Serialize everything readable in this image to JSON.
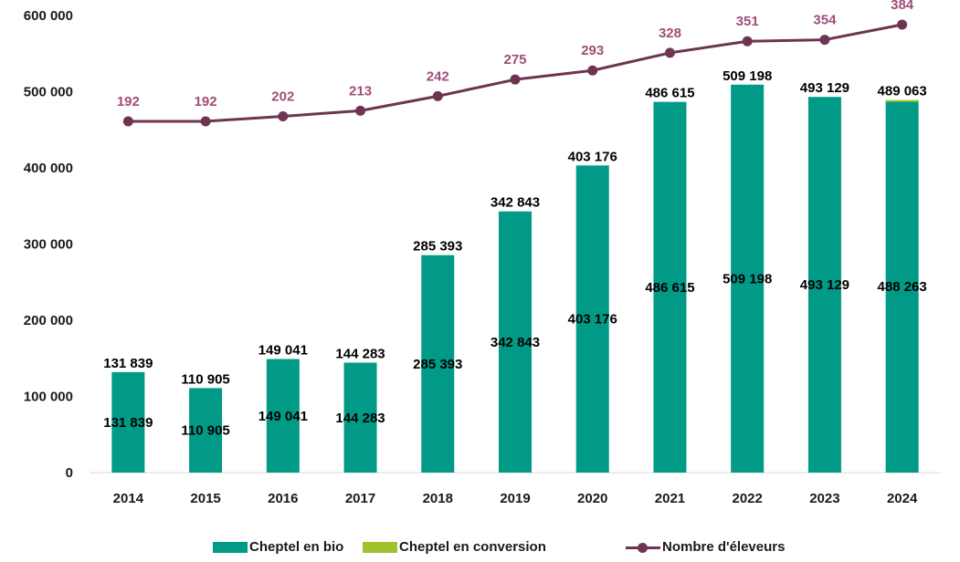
{
  "colors": {
    "bio": "#009a87",
    "conversion": "#9fc32a",
    "line": "#6e3452",
    "line_label": "#a04d78",
    "axis": "#d9d9d9"
  },
  "legend": {
    "bio": "Cheptel en bio",
    "conversion": "Cheptel en conversion",
    "line": "Nombre d'éleveurs"
  },
  "chart_data": {
    "type": "bar",
    "stacked": true,
    "categories": [
      "2014",
      "2015",
      "2016",
      "2017",
      "2018",
      "2019",
      "2020",
      "2021",
      "2022",
      "2023",
      "2024"
    ],
    "ylim": [
      0,
      600000
    ],
    "yticks": [
      0,
      100000,
      200000,
      300000,
      400000,
      500000,
      600000
    ],
    "ytick_labels": [
      "0",
      "100 000",
      "200 000",
      "300 000",
      "400 000",
      "500 000",
      "600 000"
    ],
    "grid": false,
    "legend_position": "bottom",
    "series": [
      {
        "name": "Cheptel en bio",
        "type": "bar",
        "values": [
          131839,
          110905,
          149041,
          144283,
          285393,
          342843,
          403176,
          486615,
          509198,
          493129,
          488263
        ],
        "labels": [
          "131 839",
          "110 905",
          "149 041",
          "144 283",
          "285 393",
          "342 843",
          "403 176",
          "486 615",
          "509 198",
          "493 129",
          "488 263"
        ]
      },
      {
        "name": "Cheptel en conversion",
        "type": "bar",
        "values": [
          0,
          0,
          0,
          0,
          0,
          0,
          0,
          0,
          0,
          0,
          800
        ]
      },
      {
        "name": "Nombre d'éleveurs",
        "type": "line",
        "secondary_axis": true,
        "values": [
          192,
          192,
          202,
          213,
          242,
          275,
          293,
          328,
          351,
          354,
          384
        ],
        "labels": [
          "192",
          "192",
          "202",
          "213",
          "242",
          "275",
          "293",
          "328",
          "351",
          "354",
          "384"
        ]
      }
    ],
    "totals": {
      "values": [
        131839,
        110905,
        149041,
        144283,
        285393,
        342843,
        403176,
        486615,
        509198,
        493129,
        489063
      ],
      "labels": [
        "131 839",
        "110 905",
        "149 041",
        "144 283",
        "285 393",
        "342 843",
        "403 176",
        "486 615",
        "509 198",
        "493 129",
        "489 063"
      ]
    }
  }
}
